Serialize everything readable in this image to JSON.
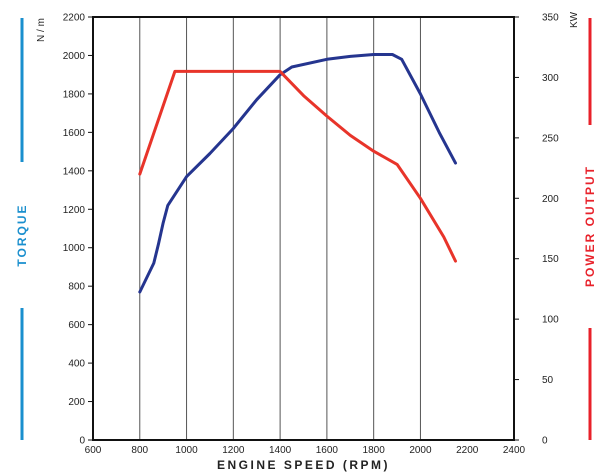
{
  "chart_data": {
    "type": "line",
    "xlabel": "ENGINE SPEED (RPM)",
    "xlim": [
      600,
      2400
    ],
    "xticks": [
      600,
      800,
      1000,
      1200,
      1400,
      1600,
      1800,
      2000,
      2200,
      2400
    ],
    "vgrid": [
      800,
      1000,
      1200,
      1400,
      1600,
      1800,
      2000
    ],
    "y_left": {
      "label": "TORQUE",
      "unit": "N / m",
      "ylim": [
        0,
        2200
      ],
      "ticks": [
        0,
        200,
        400,
        600,
        800,
        1000,
        1200,
        1400,
        1600,
        1800,
        2000,
        2200
      ],
      "color": "#1a8fce"
    },
    "y_right": {
      "label": "POWER OUTPUT",
      "unit": "KW",
      "ylim": [
        0,
        350
      ],
      "ticks": [
        0,
        50,
        100,
        150,
        200,
        250,
        300,
        350
      ],
      "color": "#e8212a"
    },
    "series": [
      {
        "axis": "left",
        "color": "#25358f",
        "points": [
          [
            800,
            770
          ],
          [
            860,
            920
          ],
          [
            880,
            1020
          ],
          [
            900,
            1130
          ],
          [
            920,
            1220
          ],
          [
            1000,
            1370
          ],
          [
            1100,
            1490
          ],
          [
            1200,
            1620
          ],
          [
            1300,
            1770
          ],
          [
            1400,
            1900
          ],
          [
            1450,
            1940
          ],
          [
            1600,
            1980
          ],
          [
            1700,
            1995
          ],
          [
            1800,
            2005
          ],
          [
            1880,
            2005
          ],
          [
            1920,
            1980
          ],
          [
            2000,
            1800
          ],
          [
            2080,
            1600
          ],
          [
            2150,
            1440
          ]
        ]
      },
      {
        "axis": "right",
        "color": "#e8342a",
        "points": [
          [
            800,
            220
          ],
          [
            950,
            305
          ],
          [
            1400,
            305
          ],
          [
            1500,
            285
          ],
          [
            1600,
            268
          ],
          [
            1700,
            252
          ],
          [
            1800,
            239
          ],
          [
            1900,
            228
          ],
          [
            2000,
            200
          ],
          [
            2100,
            168
          ],
          [
            2150,
            148
          ]
        ]
      }
    ]
  }
}
